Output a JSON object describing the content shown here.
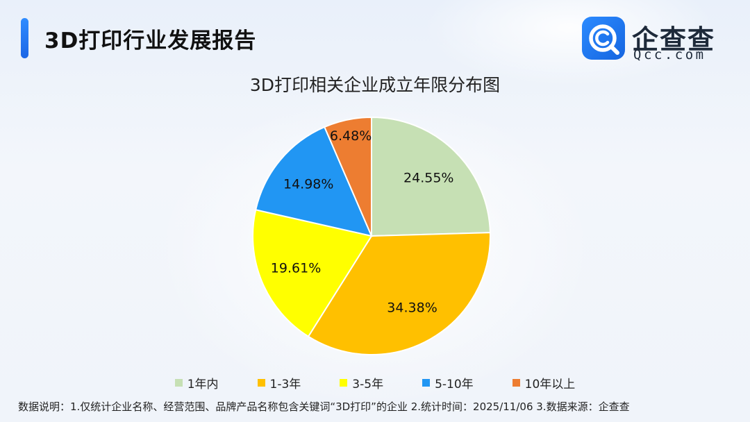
{
  "header": {
    "report_title": "3D打印行业发展报告",
    "logo_cn": "企查查",
    "logo_en": "Qcc.com"
  },
  "colors": {
    "accent": "#1e6ff0",
    "logo_blue": "#1f78f5"
  },
  "chart_data": {
    "type": "pie",
    "title": "3D打印相关企业成立年限分布图",
    "categories": [
      "1年内",
      "1-3年",
      "3-5年",
      "5-10年",
      "10年以上"
    ],
    "values": [
      24.55,
      34.38,
      19.61,
      14.98,
      6.48
    ],
    "labels": [
      "24.55%",
      "34.38%",
      "19.61%",
      "14.98%",
      "6.48%"
    ],
    "colors": [
      "#c6e0b4",
      "#ffc000",
      "#ffff00",
      "#2196f3",
      "#ed7d31"
    ],
    "start": "top",
    "direction": "clockwise",
    "legend_position": "bottom"
  },
  "footnote": "数据说明：1.仅统计企业名称、经营范围、品牌产品名称包含关键词“3D打印”的企业   2.统计时间：2025/11/06    3.数据来源：企查查"
}
